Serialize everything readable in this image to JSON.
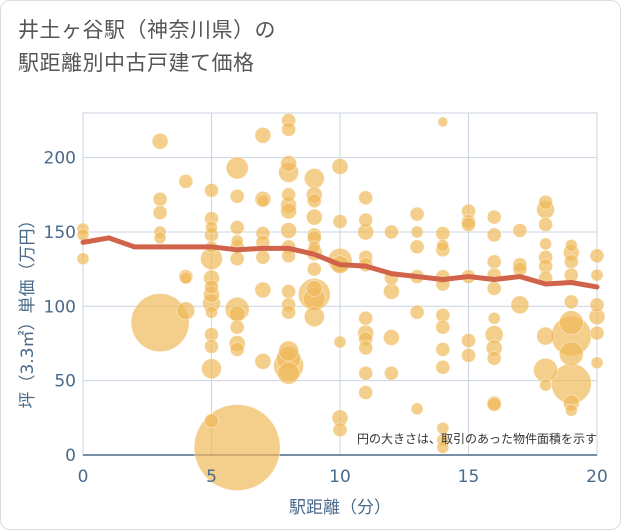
{
  "title_lines": [
    "井土ヶ谷駅（神奈川県）の",
    "駅距離別中古戸建て価格"
  ],
  "chart_data": {
    "type": "scatter",
    "title": "井土ヶ谷駅（神奈川県）の駅距離別中古戸建て価格",
    "xlabel": "駅距離（分）",
    "ylabel": "坪（3.3㎡）単価（万円）",
    "xlim": [
      0,
      20
    ],
    "ylim": [
      0,
      230
    ],
    "xticks": [
      0,
      5,
      10,
      15,
      20
    ],
    "yticks": [
      0,
      50,
      100,
      150,
      200
    ],
    "grid": true,
    "note": "円の大きさは、取引のあった物件面積を示す",
    "colors": {
      "bubble": "#f0b95a",
      "line": "#d0634a",
      "grid": "#c8d4e0",
      "axis": "#4a6a8a"
    },
    "trend": {
      "x": [
        0,
        1,
        2,
        3,
        4,
        5,
        6,
        7,
        8,
        9,
        10,
        11,
        12,
        13,
        14,
        15,
        16,
        17,
        18,
        19,
        20
      ],
      "y": [
        143,
        146,
        140,
        140,
        140,
        140,
        138,
        139,
        139,
        135,
        128,
        127,
        122,
        120,
        118,
        120,
        118,
        120,
        115,
        116,
        113
      ]
    },
    "points": [
      {
        "x": 0,
        "y": 152,
        "s": 6
      },
      {
        "x": 0,
        "y": 148,
        "s": 6
      },
      {
        "x": 0,
        "y": 132,
        "s": 6
      },
      {
        "x": 3,
        "y": 211,
        "s": 8
      },
      {
        "x": 3,
        "y": 172,
        "s": 7
      },
      {
        "x": 3,
        "y": 163,
        "s": 7
      },
      {
        "x": 3,
        "y": 150,
        "s": 6
      },
      {
        "x": 3,
        "y": 146,
        "s": 6
      },
      {
        "x": 3,
        "y": 89,
        "s": 29
      },
      {
        "x": 4,
        "y": 184,
        "s": 7
      },
      {
        "x": 4,
        "y": 120,
        "s": 7
      },
      {
        "x": 4,
        "y": 119,
        "s": 6
      },
      {
        "x": 4,
        "y": 97,
        "s": 9
      },
      {
        "x": 5,
        "y": 178,
        "s": 7
      },
      {
        "x": 5,
        "y": 159,
        "s": 7
      },
      {
        "x": 5,
        "y": 153,
        "s": 6
      },
      {
        "x": 5,
        "y": 148,
        "s": 7
      },
      {
        "x": 5,
        "y": 140,
        "s": 6
      },
      {
        "x": 5,
        "y": 132,
        "s": 11
      },
      {
        "x": 5,
        "y": 119,
        "s": 8
      },
      {
        "x": 5,
        "y": 113,
        "s": 7
      },
      {
        "x": 5,
        "y": 108,
        "s": 8
      },
      {
        "x": 5,
        "y": 102,
        "s": 9
      },
      {
        "x": 5,
        "y": 96,
        "s": 6
      },
      {
        "x": 5,
        "y": 81,
        "s": 7
      },
      {
        "x": 5,
        "y": 73,
        "s": 7
      },
      {
        "x": 5,
        "y": 58,
        "s": 10
      },
      {
        "x": 5,
        "y": 23,
        "s": 7
      },
      {
        "x": 6,
        "y": 193,
        "s": 11
      },
      {
        "x": 6,
        "y": 174,
        "s": 7
      },
      {
        "x": 6,
        "y": 153,
        "s": 7
      },
      {
        "x": 6,
        "y": 144,
        "s": 6
      },
      {
        "x": 6,
        "y": 140,
        "s": 7
      },
      {
        "x": 6,
        "y": 132,
        "s": 7
      },
      {
        "x": 6,
        "y": 98,
        "s": 12
      },
      {
        "x": 6,
        "y": 95,
        "s": 8
      },
      {
        "x": 6,
        "y": 86,
        "s": 7
      },
      {
        "x": 6,
        "y": 75,
        "s": 8
      },
      {
        "x": 6,
        "y": 71,
        "s": 7
      },
      {
        "x": 6,
        "y": 5,
        "s": 43
      },
      {
        "x": 7,
        "y": 215,
        "s": 8
      },
      {
        "x": 7,
        "y": 172,
        "s": 8
      },
      {
        "x": 7,
        "y": 171,
        "s": 6
      },
      {
        "x": 7,
        "y": 149,
        "s": 7
      },
      {
        "x": 7,
        "y": 143,
        "s": 7
      },
      {
        "x": 7,
        "y": 133,
        "s": 7
      },
      {
        "x": 7,
        "y": 111,
        "s": 8
      },
      {
        "x": 7,
        "y": 63,
        "s": 8
      },
      {
        "x": 8,
        "y": 225,
        "s": 7
      },
      {
        "x": 8,
        "y": 219,
        "s": 7
      },
      {
        "x": 8,
        "y": 196,
        "s": 8
      },
      {
        "x": 8,
        "y": 190,
        "s": 10
      },
      {
        "x": 8,
        "y": 175,
        "s": 7
      },
      {
        "x": 8,
        "y": 168,
        "s": 8
      },
      {
        "x": 8,
        "y": 164,
        "s": 8
      },
      {
        "x": 8,
        "y": 151,
        "s": 8
      },
      {
        "x": 8,
        "y": 140,
        "s": 7
      },
      {
        "x": 8,
        "y": 134,
        "s": 7
      },
      {
        "x": 8,
        "y": 110,
        "s": 7
      },
      {
        "x": 8,
        "y": 101,
        "s": 7
      },
      {
        "x": 8,
        "y": 96,
        "s": 7
      },
      {
        "x": 8,
        "y": 70,
        "s": 10
      },
      {
        "x": 8,
        "y": 65,
        "s": 12
      },
      {
        "x": 8,
        "y": 60,
        "s": 15
      },
      {
        "x": 8,
        "y": 55,
        "s": 11
      },
      {
        "x": 9,
        "y": 186,
        "s": 10
      },
      {
        "x": 9,
        "y": 175,
        "s": 8
      },
      {
        "x": 9,
        "y": 171,
        "s": 7
      },
      {
        "x": 9,
        "y": 160,
        "s": 8
      },
      {
        "x": 9,
        "y": 148,
        "s": 7
      },
      {
        "x": 9,
        "y": 146,
        "s": 7
      },
      {
        "x": 9,
        "y": 140,
        "s": 6
      },
      {
        "x": 9,
        "y": 136,
        "s": 8
      },
      {
        "x": 9,
        "y": 125,
        "s": 7
      },
      {
        "x": 9,
        "y": 112,
        "s": 8
      },
      {
        "x": 9,
        "y": 108,
        "s": 16
      },
      {
        "x": 9,
        "y": 105,
        "s": 11
      },
      {
        "x": 9,
        "y": 93,
        "s": 10
      },
      {
        "x": 10,
        "y": 194,
        "s": 8
      },
      {
        "x": 10,
        "y": 157,
        "s": 7
      },
      {
        "x": 10,
        "y": 131,
        "s": 12
      },
      {
        "x": 10,
        "y": 128,
        "s": 9
      },
      {
        "x": 10,
        "y": 76,
        "s": 6
      },
      {
        "x": 10,
        "y": 25,
        "s": 8
      },
      {
        "x": 10,
        "y": 17,
        "s": 7
      },
      {
        "x": 11,
        "y": 173,
        "s": 7
      },
      {
        "x": 11,
        "y": 158,
        "s": 7
      },
      {
        "x": 11,
        "y": 150,
        "s": 8
      },
      {
        "x": 11,
        "y": 133,
        "s": 7
      },
      {
        "x": 11,
        "y": 128,
        "s": 7
      },
      {
        "x": 11,
        "y": 92,
        "s": 7
      },
      {
        "x": 11,
        "y": 82,
        "s": 8
      },
      {
        "x": 11,
        "y": 78,
        "s": 7
      },
      {
        "x": 11,
        "y": 72,
        "s": 7
      },
      {
        "x": 11,
        "y": 55,
        "s": 7
      },
      {
        "x": 11,
        "y": 42,
        "s": 7
      },
      {
        "x": 12,
        "y": 150,
        "s": 7
      },
      {
        "x": 12,
        "y": 119,
        "s": 7
      },
      {
        "x": 12,
        "y": 110,
        "s": 8
      },
      {
        "x": 12,
        "y": 79,
        "s": 8
      },
      {
        "x": 12,
        "y": 55,
        "s": 7
      },
      {
        "x": 13,
        "y": 162,
        "s": 7
      },
      {
        "x": 13,
        "y": 150,
        "s": 6
      },
      {
        "x": 13,
        "y": 140,
        "s": 7
      },
      {
        "x": 13,
        "y": 120,
        "s": 7
      },
      {
        "x": 13,
        "y": 96,
        "s": 7
      },
      {
        "x": 13,
        "y": 31,
        "s": 6
      },
      {
        "x": 14,
        "y": 224,
        "s": 5
      },
      {
        "x": 14,
        "y": 149,
        "s": 7
      },
      {
        "x": 14,
        "y": 141,
        "s": 6
      },
      {
        "x": 14,
        "y": 138,
        "s": 7
      },
      {
        "x": 14,
        "y": 120,
        "s": 7
      },
      {
        "x": 14,
        "y": 115,
        "s": 7
      },
      {
        "x": 14,
        "y": 94,
        "s": 7
      },
      {
        "x": 14,
        "y": 86,
        "s": 7
      },
      {
        "x": 14,
        "y": 71,
        "s": 7
      },
      {
        "x": 14,
        "y": 59,
        "s": 7
      },
      {
        "x": 14,
        "y": 18,
        "s": 6
      },
      {
        "x": 14,
        "y": 10,
        "s": 6
      },
      {
        "x": 14,
        "y": 5,
        "s": 6
      },
      {
        "x": 15,
        "y": 164,
        "s": 7
      },
      {
        "x": 15,
        "y": 157,
        "s": 7
      },
      {
        "x": 15,
        "y": 155,
        "s": 7
      },
      {
        "x": 15,
        "y": 120,
        "s": 7
      },
      {
        "x": 15,
        "y": 77,
        "s": 7
      },
      {
        "x": 15,
        "y": 67,
        "s": 7
      },
      {
        "x": 16,
        "y": 160,
        "s": 7
      },
      {
        "x": 16,
        "y": 148,
        "s": 7
      },
      {
        "x": 16,
        "y": 130,
        "s": 7
      },
      {
        "x": 16,
        "y": 121,
        "s": 7
      },
      {
        "x": 16,
        "y": 112,
        "s": 7
      },
      {
        "x": 16,
        "y": 92,
        "s": 6
      },
      {
        "x": 16,
        "y": 81,
        "s": 9
      },
      {
        "x": 16,
        "y": 72,
        "s": 8
      },
      {
        "x": 16,
        "y": 65,
        "s": 7
      },
      {
        "x": 16,
        "y": 35,
        "s": 7
      },
      {
        "x": 16,
        "y": 34,
        "s": 7
      },
      {
        "x": 17,
        "y": 151,
        "s": 7
      },
      {
        "x": 17,
        "y": 128,
        "s": 7
      },
      {
        "x": 17,
        "y": 125,
        "s": 7
      },
      {
        "x": 17,
        "y": 101,
        "s": 9
      },
      {
        "x": 18,
        "y": 170,
        "s": 7
      },
      {
        "x": 18,
        "y": 165,
        "s": 9
      },
      {
        "x": 18,
        "y": 155,
        "s": 7
      },
      {
        "x": 18,
        "y": 142,
        "s": 6
      },
      {
        "x": 18,
        "y": 133,
        "s": 7
      },
      {
        "x": 18,
        "y": 127,
        "s": 7
      },
      {
        "x": 18,
        "y": 119,
        "s": 7
      },
      {
        "x": 18,
        "y": 80,
        "s": 9
      },
      {
        "x": 18,
        "y": 57,
        "s": 12
      },
      {
        "x": 18,
        "y": 47,
        "s": 6
      },
      {
        "x": 19,
        "y": 141,
        "s": 6
      },
      {
        "x": 19,
        "y": 136,
        "s": 8
      },
      {
        "x": 19,
        "y": 130,
        "s": 7
      },
      {
        "x": 19,
        "y": 121,
        "s": 7
      },
      {
        "x": 19,
        "y": 103,
        "s": 7
      },
      {
        "x": 19,
        "y": 89,
        "s": 12
      },
      {
        "x": 19,
        "y": 80,
        "s": 20
      },
      {
        "x": 19,
        "y": 68,
        "s": 12
      },
      {
        "x": 19,
        "y": 48,
        "s": 20
      },
      {
        "x": 19,
        "y": 35,
        "s": 8
      },
      {
        "x": 19,
        "y": 30,
        "s": 6
      },
      {
        "x": 20,
        "y": 134,
        "s": 7
      },
      {
        "x": 20,
        "y": 121,
        "s": 6
      },
      {
        "x": 20,
        "y": 101,
        "s": 7
      },
      {
        "x": 20,
        "y": 93,
        "s": 8
      },
      {
        "x": 20,
        "y": 82,
        "s": 7
      },
      {
        "x": 20,
        "y": 62,
        "s": 6
      }
    ]
  }
}
